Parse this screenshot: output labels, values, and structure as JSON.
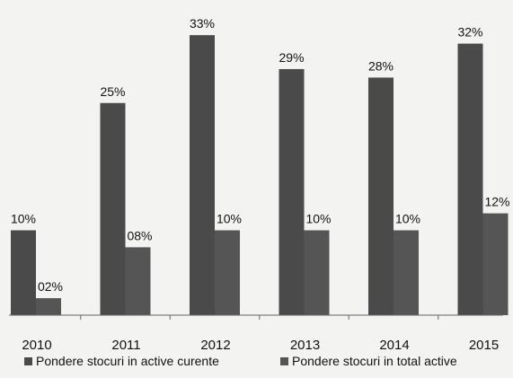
{
  "chart_data": {
    "type": "bar",
    "categories": [
      "2010",
      "2011",
      "2012",
      "2013",
      "2014",
      "2015"
    ],
    "series": [
      {
        "name": "Pondere stocuri in active curente",
        "values": [
          10,
          25,
          33,
          29,
          28,
          32
        ],
        "labels": [
          "10%",
          "25%",
          "33%",
          "29%",
          "28%",
          "32%"
        ],
        "color": "#4a4a4a"
      },
      {
        "name": "Pondere stocuri in total active",
        "values": [
          2,
          8,
          10,
          10,
          10,
          12
        ],
        "labels": [
          "02%",
          "08%",
          "10%",
          "10%",
          "10%",
          "12%"
        ],
        "color": "#555555"
      }
    ],
    "ylim": [
      0,
      35
    ],
    "grid": false,
    "legend_position": "bottom"
  }
}
